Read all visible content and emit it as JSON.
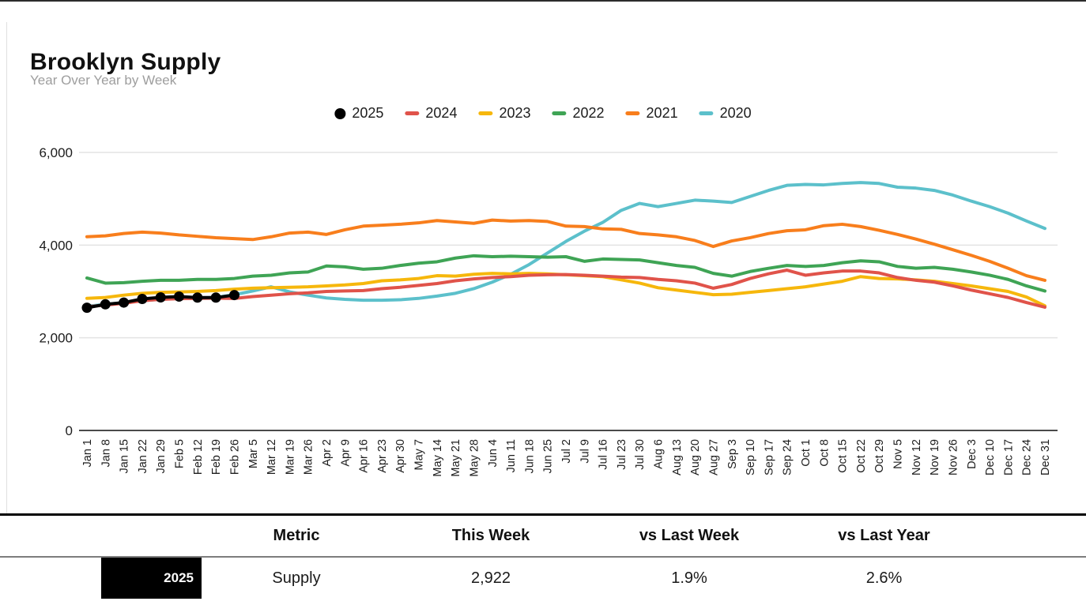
{
  "page": {
    "title": "Brooklyn Supply",
    "subtitle": "Year Over Year by Week"
  },
  "chart_data": {
    "type": "line",
    "title": "Brooklyn Supply",
    "subtitle": "Year Over Year by Week",
    "grid": true,
    "legend_position": "top",
    "ylim": [
      0,
      6000
    ],
    "y_ticks": [
      0,
      2000,
      4000,
      6000
    ],
    "y_tick_labels": [
      "0",
      "2,000",
      "4,000",
      "6,000"
    ],
    "x_labels": [
      "Jan 1",
      "Jan 8",
      "Jan 15",
      "Jan 22",
      "Jan 29",
      "Feb 5",
      "Feb 12",
      "Feb 19",
      "Feb 26",
      "Mar 5",
      "Mar 12",
      "Mar 19",
      "Mar 26",
      "Apr 2",
      "Apr 9",
      "Apr 16",
      "Apr 23",
      "Apr 30",
      "May 7",
      "May 14",
      "May 21",
      "May 28",
      "Jun 4",
      "Jun 11",
      "Jun 18",
      "Jun 25",
      "Jul 2",
      "Jul 9",
      "Jul 16",
      "Jul 23",
      "Jul 30",
      "Aug 6",
      "Aug 13",
      "Aug 20",
      "Aug 27",
      "Sep 3",
      "Sep 10",
      "Sep 17",
      "Sep 24",
      "Oct 1",
      "Oct 8",
      "Oct 15",
      "Oct 22",
      "Oct 29",
      "Nov 5",
      "Nov 12",
      "Nov 19",
      "Nov 26",
      "Dec 3",
      "Dec 10",
      "Dec 17",
      "Dec 24",
      "Dec 31"
    ],
    "series": [
      {
        "name": "2025",
        "color": "#000000",
        "style": "line+dots",
        "values": [
          2648,
          2722,
          2760,
          2838,
          2872,
          2890,
          2868,
          2867,
          2922
        ]
      },
      {
        "name": "2024",
        "color": "#e0534a",
        "style": "line",
        "values": [
          2670,
          2705,
          2745,
          2800,
          2830,
          2845,
          2850,
          2855,
          2848,
          2890,
          2920,
          2950,
          2970,
          3000,
          3010,
          3020,
          3060,
          3090,
          3130,
          3170,
          3230,
          3270,
          3300,
          3320,
          3350,
          3360,
          3365,
          3350,
          3330,
          3310,
          3300,
          3260,
          3230,
          3180,
          3070,
          3150,
          3280,
          3380,
          3460,
          3350,
          3400,
          3440,
          3440,
          3400,
          3300,
          3240,
          3200,
          3120,
          3030,
          2950,
          2870,
          2760,
          2660
        ]
      },
      {
        "name": "2023",
        "color": "#f6b70c",
        "style": "line",
        "values": [
          2850,
          2870,
          2920,
          2960,
          2980,
          2990,
          3000,
          3020,
          3050,
          3070,
          3080,
          3090,
          3100,
          3120,
          3140,
          3170,
          3230,
          3250,
          3280,
          3340,
          3330,
          3370,
          3390,
          3380,
          3390,
          3380,
          3360,
          3340,
          3320,
          3250,
          3180,
          3080,
          3030,
          2980,
          2930,
          2940,
          2980,
          3020,
          3060,
          3100,
          3160,
          3220,
          3320,
          3280,
          3270,
          3250,
          3220,
          3170,
          3120,
          3060,
          3000,
          2880,
          2690
        ]
      },
      {
        "name": "2022",
        "color": "#3fa455",
        "style": "line",
        "values": [
          3290,
          3180,
          3190,
          3220,
          3240,
          3240,
          3260,
          3260,
          3280,
          3330,
          3350,
          3400,
          3420,
          3550,
          3530,
          3480,
          3500,
          3560,
          3610,
          3640,
          3720,
          3770,
          3750,
          3760,
          3750,
          3740,
          3750,
          3650,
          3700,
          3690,
          3680,
          3620,
          3560,
          3520,
          3390,
          3330,
          3430,
          3500,
          3560,
          3540,
          3560,
          3620,
          3660,
          3640,
          3540,
          3500,
          3520,
          3480,
          3420,
          3350,
          3260,
          3120,
          3010
        ]
      },
      {
        "name": "2021",
        "color": "#f87e1c",
        "style": "line",
        "values": [
          4180,
          4200,
          4250,
          4280,
          4260,
          4220,
          4190,
          4160,
          4140,
          4120,
          4180,
          4260,
          4280,
          4230,
          4330,
          4410,
          4430,
          4450,
          4480,
          4530,
          4500,
          4470,
          4540,
          4520,
          4530,
          4510,
          4410,
          4400,
          4350,
          4340,
          4250,
          4220,
          4180,
          4100,
          3970,
          4090,
          4160,
          4250,
          4310,
          4330,
          4420,
          4450,
          4400,
          4320,
          4230,
          4130,
          4020,
          3900,
          3780,
          3650,
          3500,
          3340,
          3240
        ]
      },
      {
        "name": "2020",
        "color": "#5cc0cb",
        "style": "line",
        "values": [
          2680,
          2720,
          2760,
          2800,
          2830,
          2850,
          2860,
          2870,
          2930,
          3010,
          3100,
          2990,
          2920,
          2860,
          2830,
          2810,
          2810,
          2820,
          2850,
          2900,
          2960,
          3060,
          3200,
          3370,
          3580,
          3830,
          4080,
          4300,
          4490,
          4750,
          4900,
          4830,
          4900,
          4970,
          4950,
          4920,
          5050,
          5180,
          5290,
          5310,
          5300,
          5330,
          5350,
          5330,
          5250,
          5230,
          5180,
          5080,
          4950,
          4830,
          4690,
          4520,
          4360
        ]
      }
    ]
  },
  "table": {
    "headers": [
      "Metric",
      "This Week",
      "vs Last Week",
      "vs Last Year"
    ],
    "row": {
      "year": "2025",
      "metric": "Supply",
      "this_week": "2,922",
      "vs_last_week": "1.9%",
      "vs_last_year": "2.6%"
    }
  }
}
